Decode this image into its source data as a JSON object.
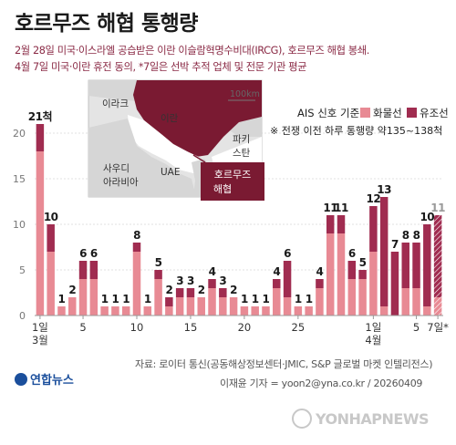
{
  "title": "호르무즈 해협 통행량",
  "subtitle_line1": "2월 28일 미국·이스라엘 공습받은 이란 이슬람혁명수비대(IRCG), 호르무즈 해협 봉쇄.",
  "subtitle_line2": "4월 7일 미국·이란 휴전 동의, *7일은 선박 추적 업체 및 전문 기관 평균",
  "map": {
    "labels": {
      "iraq": "이라크",
      "iran": "이란",
      "saudi": "사우디\n아라비아",
      "uae": "UAE",
      "pakistan": "파키\n스탄",
      "hormuz": "호르무즈\n해협"
    },
    "scale": "100km"
  },
  "legend": {
    "basis": "AIS 신호 기준",
    "cargo": "화물선",
    "tanker": "유조선",
    "note": "※ 전쟁 이전 하루 통행량 약135~138척"
  },
  "colors": {
    "cargo": "#e88a94",
    "tanker": "#a02c50",
    "text_dark": "#1a1a1a",
    "axis": "#777777",
    "map_land": "#d9d9d9",
    "map_iran": "#7a1a32"
  },
  "source": "자료: 로이터 통신(공동해상정보센터·JMIC, S&P 글로벌 마켓 인텔리전스)",
  "credit": "이재윤 기자 = yoon2@yna.co.kr / 20260409",
  "logo": "연합뉴스",
  "watermark": "YONHAPNEWS",
  "chart_data": {
    "type": "bar",
    "stacked": true,
    "xlabel": "",
    "ylabel": "",
    "ylim": [
      0,
      20
    ],
    "yticks": [
      0,
      5,
      10,
      15,
      20
    ],
    "x_tick_labels": [
      {
        "index": 0,
        "label": "1일\n3월"
      },
      {
        "index": 4,
        "label": "5"
      },
      {
        "index": 9,
        "label": "10"
      },
      {
        "index": 14,
        "label": "15"
      },
      {
        "index": 19,
        "label": "20"
      },
      {
        "index": 24,
        "label": "25"
      },
      {
        "index": 31,
        "label": "1일\n4월"
      },
      {
        "index": 35,
        "label": "5"
      },
      {
        "index": 37,
        "label": "7일*"
      }
    ],
    "categories": [
      "3/1",
      "3/2",
      "3/3",
      "3/4",
      "3/5",
      "3/6",
      "3/7",
      "3/8",
      "3/9",
      "3/10",
      "3/11",
      "3/12",
      "3/13",
      "3/14",
      "3/15",
      "3/16",
      "3/17",
      "3/18",
      "3/19",
      "3/20",
      "3/21",
      "3/22",
      "3/23",
      "3/24",
      "3/25",
      "3/26",
      "3/27",
      "3/28",
      "3/29",
      "3/30",
      "3/31",
      "4/1",
      "4/2",
      "4/3",
      "4/4",
      "4/5",
      "4/6",
      "4/7*"
    ],
    "totals": [
      "21척",
      "10",
      "1",
      "2",
      "6",
      "6",
      "1",
      "1",
      "1",
      "8",
      "1",
      "5",
      "2",
      "3",
      "3",
      "2",
      "4",
      "3",
      "2",
      "1",
      "1",
      "1",
      "4",
      "6",
      "1",
      "1",
      "4",
      "11",
      "11",
      "6",
      "5",
      "12",
      "13",
      "7",
      "8",
      "8",
      "10",
      "11"
    ],
    "series": [
      {
        "name": "화물선",
        "values": [
          18,
          7,
          1,
          2,
          4,
          4,
          1,
          1,
          1,
          7,
          1,
          4,
          1,
          2,
          2,
          2,
          3,
          2,
          2,
          1,
          1,
          1,
          3,
          2,
          1,
          1,
          3,
          9,
          9,
          4,
          4,
          7,
          1,
          0,
          3,
          3,
          1,
          2
        ]
      },
      {
        "name": "유조선",
        "values": [
          3,
          3,
          0,
          0,
          2,
          2,
          0,
          0,
          0,
          1,
          0,
          1,
          1,
          1,
          1,
          0,
          1,
          1,
          0,
          0,
          0,
          0,
          1,
          4,
          0,
          0,
          1,
          2,
          2,
          2,
          1,
          5,
          12,
          7,
          5,
          5,
          9,
          9
        ]
      }
    ],
    "last_bar_hatched": true
  }
}
